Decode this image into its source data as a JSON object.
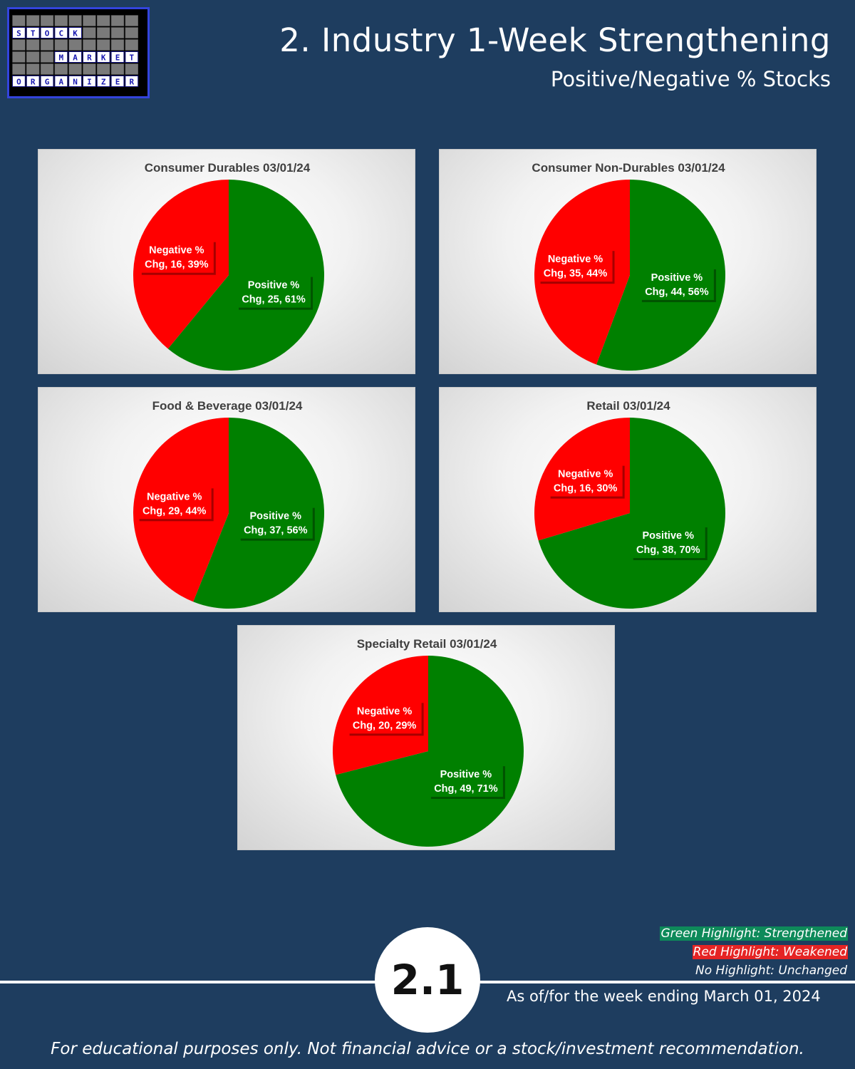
{
  "logo": {
    "rows": [
      [
        "S",
        "T",
        "O",
        "C",
        "K"
      ],
      [
        "M",
        "A",
        "R",
        "K",
        "E",
        "T"
      ],
      [
        "O",
        "R",
        "G",
        "A",
        "N",
        "I",
        "Z",
        "E",
        "R"
      ]
    ],
    "label": "STOCK MARKET ORGANIZER"
  },
  "header": {
    "title": "2. Industry 1-Week Strengthening",
    "subtitle": "Positive/Negative % Stocks"
  },
  "chart_data": [
    {
      "type": "pie",
      "title": "Consumer Durables 03/01/24",
      "slices": [
        {
          "name": "Positive % Chg",
          "value": 25,
          "percent": 61,
          "label_line1": "Positive %",
          "label_line2": "Chg, 25, 61%",
          "color": "#008000"
        },
        {
          "name": "Negative % Chg",
          "value": 16,
          "percent": 39,
          "label_line1": "Negative %",
          "label_line2": "Chg, 16, 39%",
          "color": "#ff0000"
        }
      ]
    },
    {
      "type": "pie",
      "title": "Consumer Non-Durables 03/01/24",
      "slices": [
        {
          "name": "Positive % Chg",
          "value": 44,
          "percent": 56,
          "label_line1": "Positive %",
          "label_line2": "Chg, 44, 56%",
          "color": "#008000"
        },
        {
          "name": "Negative % Chg",
          "value": 35,
          "percent": 44,
          "label_line1": "Negative %",
          "label_line2": "Chg, 35, 44%",
          "color": "#ff0000"
        }
      ]
    },
    {
      "type": "pie",
      "title": "Food & Beverage 03/01/24",
      "slices": [
        {
          "name": "Positive % Chg",
          "value": 37,
          "percent": 56,
          "label_line1": "Positive %",
          "label_line2": "Chg, 37, 56%",
          "color": "#008000"
        },
        {
          "name": "Negative % Chg",
          "value": 29,
          "percent": 44,
          "label_line1": "Negative %",
          "label_line2": "Chg, 29, 44%",
          "color": "#ff0000"
        }
      ]
    },
    {
      "type": "pie",
      "title": "Retail 03/01/24",
      "slices": [
        {
          "name": "Positive % Chg",
          "value": 38,
          "percent": 70,
          "label_line1": "Positive %",
          "label_line2": "Chg, 38, 70%",
          "color": "#008000"
        },
        {
          "name": "Negative % Chg",
          "value": 16,
          "percent": 30,
          "label_line1": "Negative %",
          "label_line2": "Chg, 16, 30%",
          "color": "#ff0000"
        }
      ]
    },
    {
      "type": "pie",
      "title": "Specialty Retail 03/01/24",
      "slices": [
        {
          "name": "Positive % Chg",
          "value": 49,
          "percent": 71,
          "label_line1": "Positive %",
          "label_line2": "Chg, 49, 71%",
          "color": "#008000"
        },
        {
          "name": "Negative % Chg",
          "value": 20,
          "percent": 29,
          "label_line1": "Negative %",
          "label_line2": "Chg, 20, 29%",
          "color": "#ff0000"
        }
      ]
    }
  ],
  "legend": {
    "green": "Green Highlight: Strengthened",
    "red": "Red Highlight: Weakened",
    "none": "No Highlight: Unchanged"
  },
  "footer": {
    "page_number": "2.1",
    "as_of": "As of/for the week ending March 01, 2024",
    "disclaimer": "For educational purposes only. Not financial advice or a stock/investment recommendation."
  },
  "colors": {
    "background": "#1e3d5f",
    "positive": "#008000",
    "negative": "#ff0000"
  }
}
